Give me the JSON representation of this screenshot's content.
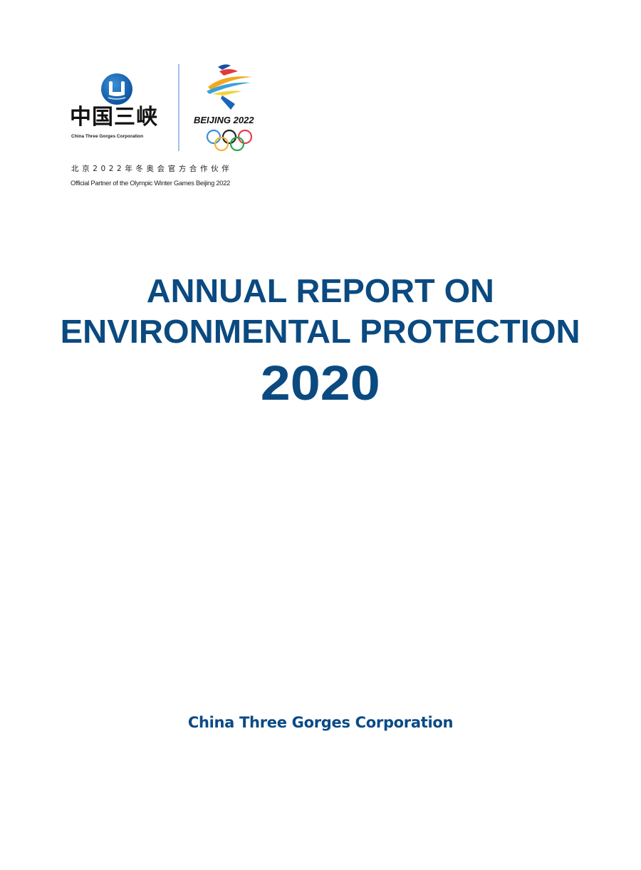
{
  "logos": {
    "ctg_cn": "中国三峡",
    "ctg_en": "China Three Gorges Corporation",
    "beijing_text": "BEIJING 2022",
    "partner_cn": "北京2022年冬奥会官方合作伙伴",
    "partner_en": "Official Partner of the Olympic Winter Games Beijing 2022"
  },
  "title": {
    "line1": "ANNUAL REPORT ON",
    "line2": "ENVIRONMENTAL PROTECTION",
    "year": "2020"
  },
  "footer": "China Three Gorges Corporation",
  "colors": {
    "primary": "#0b4a80",
    "ctg_blue": "#1769b5"
  }
}
